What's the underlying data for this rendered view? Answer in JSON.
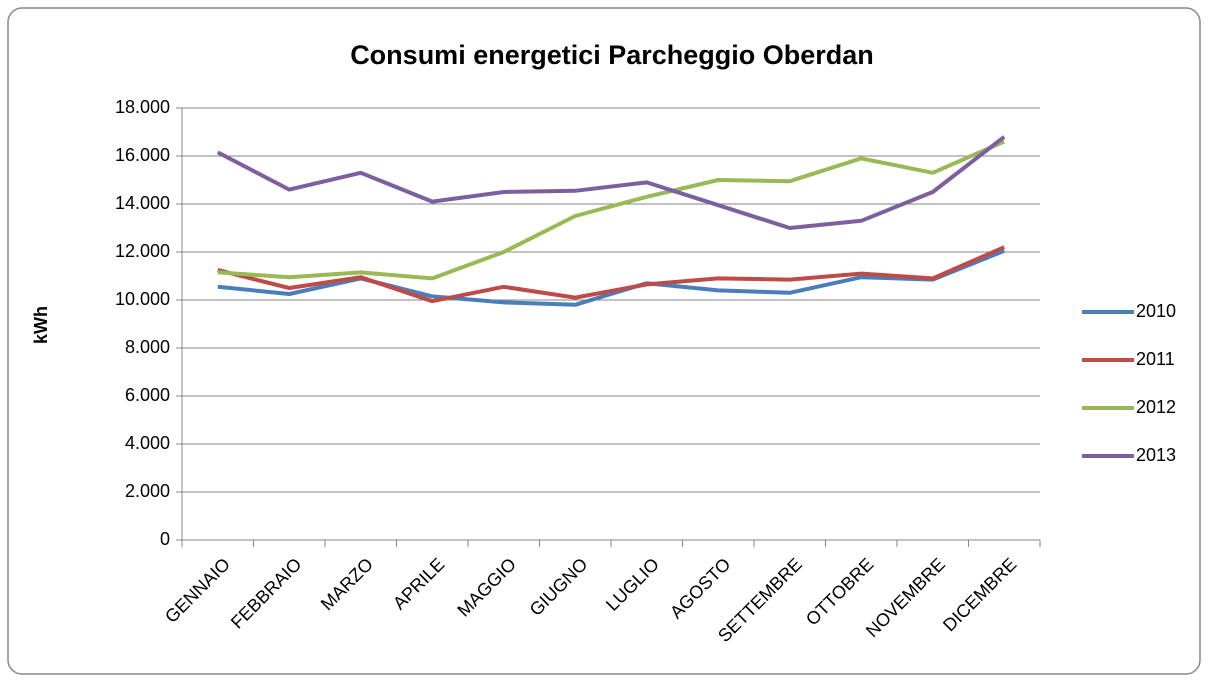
{
  "chart_data": {
    "type": "line",
    "title": "Consumi energetici Parcheggio Oberdan",
    "y_label": "kWh",
    "categories": [
      "GENNAIO",
      "FEBBRAIO",
      "MARZO",
      "APRILE",
      "MAGGIO",
      "GIUGNO",
      "LUGLIO",
      "AGOSTO",
      "SETTEMBRE",
      "OTTOBRE",
      "NOVEMBRE",
      "DICEMBRE"
    ],
    "series": [
      {
        "name": "2010",
        "color": "#4a7ebb",
        "values": [
          10550,
          10250,
          10900,
          10150,
          9900,
          9800,
          10700,
          10400,
          10300,
          10950,
          10850,
          12050
        ]
      },
      {
        "name": "2011",
        "color": "#be4b48",
        "values": [
          11250,
          10500,
          10950,
          9950,
          10550,
          10100,
          10650,
          10900,
          10850,
          11100,
          10900,
          12200
        ]
      },
      {
        "name": "2012",
        "color": "#98b954",
        "values": [
          11150,
          10950,
          11150,
          10900,
          12000,
          13500,
          14300,
          15000,
          14950,
          15900,
          15300,
          16600
        ]
      },
      {
        "name": "2013",
        "color": "#7d5fa0",
        "values": [
          16150,
          14600,
          15300,
          14100,
          14500,
          14550,
          14900,
          13950,
          13000,
          13300,
          14500,
          16800
        ]
      }
    ],
    "ylim": [
      0,
      18000
    ],
    "yticks": [
      0,
      {
        "value": 2000,
        "label": "2.000"
      },
      {
        "value": 4000,
        "label": "4.000"
      },
      {
        "value": 6000,
        "label": "6.000"
      },
      {
        "value": 8000,
        "label": "8.000"
      },
      {
        "value": 10000,
        "label": "10.000"
      },
      {
        "value": 12000,
        "label": "12.000"
      },
      {
        "value": 14000,
        "label": "14.000"
      },
      {
        "value": 16000,
        "label": "16.000"
      },
      {
        "value": 18000,
        "label": "18.000"
      }
    ],
    "grid": true,
    "legend": "right"
  }
}
